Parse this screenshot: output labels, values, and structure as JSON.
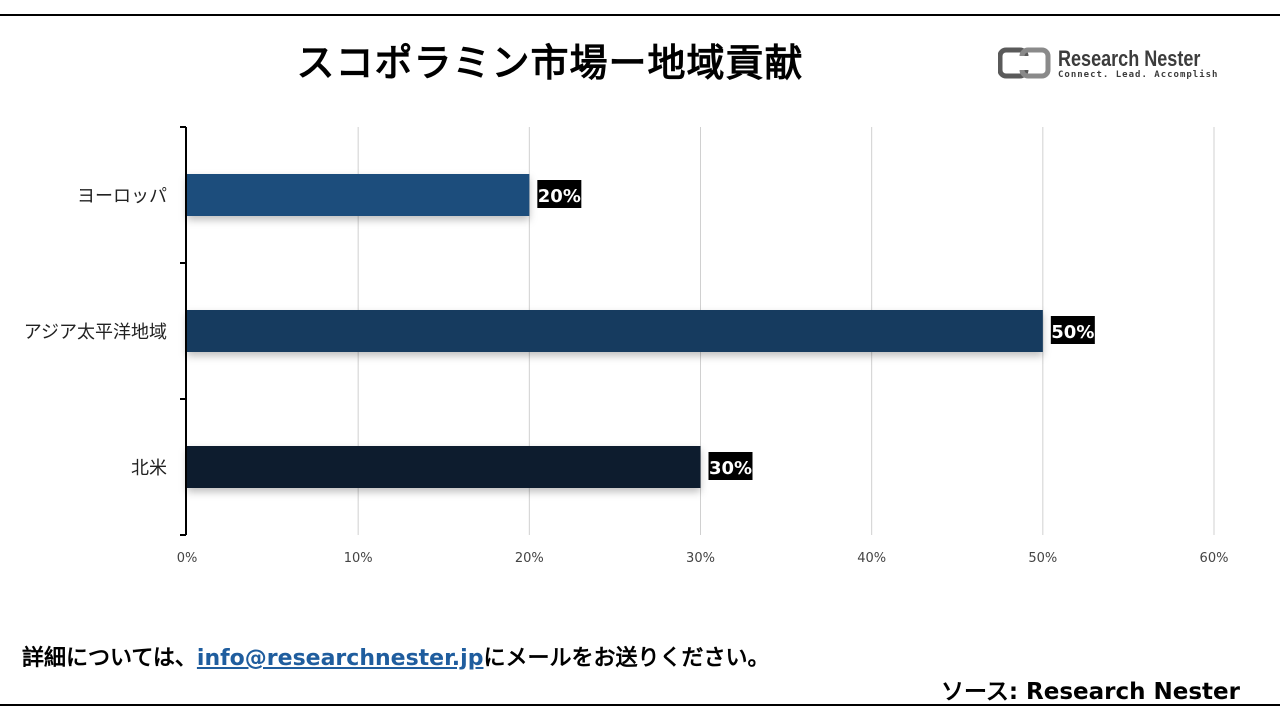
{
  "title": "スコポラミン市場ー地域貢献",
  "logo": {
    "name": "Research Nester",
    "tagline": "Connect. Lead. Accomplish",
    "color": "#3c3c3c"
  },
  "chart_data": {
    "type": "bar",
    "orientation": "horizontal",
    "categories": [
      "ヨーロッパ",
      "アジア太平洋地域",
      "北米"
    ],
    "values": [
      20,
      50,
      30
    ],
    "value_labels": [
      "20%",
      "50%",
      "30%"
    ],
    "colors": [
      "#1f4e7c",
      "#173a5e",
      "#0f1f2e"
    ],
    "xlim": [
      0,
      60
    ],
    "x_ticks": [
      "0%",
      "10%",
      "20%",
      "30%",
      "40%",
      "50%",
      "60%"
    ],
    "x_tick_values": [
      0,
      10,
      20,
      30,
      40,
      50,
      60
    ],
    "grid": true,
    "legend": "none"
  },
  "footer": {
    "contact_prefix": "詳細については、",
    "contact_email": "info@researchnester.jp",
    "contact_suffix": "にメールをお送りください。",
    "source": "ソース: Research Nester"
  }
}
